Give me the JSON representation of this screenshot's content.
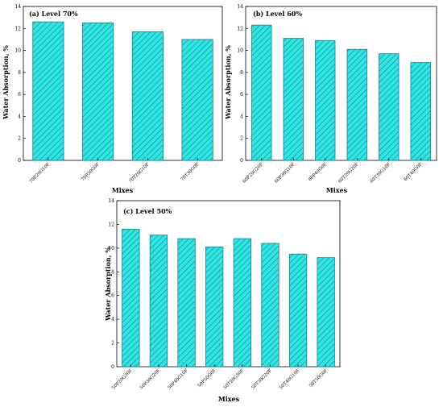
{
  "figure": {
    "bar_fill": "#2ee6e6",
    "bar_stroke": "#1a7f7f",
    "hatch_color": "#0f5f5f",
    "axis_color": "#000000"
  },
  "chart_data": [
    {
      "type": "bar",
      "panel_label": "(a) Level 70%",
      "title": "",
      "xlabel": "Mixes",
      "ylabel": "Water Absorption, %",
      "ylim": [
        0,
        14
      ],
      "yticks": [
        "0",
        "2",
        "4",
        "6",
        "8",
        "10",
        "12",
        "14"
      ],
      "categories": [
        "70P20G10F",
        "70P30G0F",
        "70T20G10F",
        "70T30G0F"
      ],
      "values": [
        12.6,
        12.5,
        11.7,
        11.0
      ],
      "grid": false,
      "legend": "none"
    },
    {
      "type": "bar",
      "panel_label": "(b) Level 60%",
      "title": "",
      "xlabel": "Mixes",
      "ylabel": "Water Absorption, %",
      "ylim": [
        0,
        14
      ],
      "yticks": [
        "0",
        "2",
        "4",
        "6",
        "8",
        "10",
        "12",
        "14"
      ],
      "categories": [
        "60P20G20F",
        "60P30G10F",
        "60P40G0F",
        "60T20G20F",
        "60T30G10F",
        "60T40G0F"
      ],
      "values": [
        12.3,
        11.1,
        10.9,
        10.1,
        9.7,
        8.9
      ],
      "grid": false,
      "legend": "none"
    },
    {
      "type": "bar",
      "panel_label": "(c) Level 50%",
      "title": "",
      "xlabel": "Mixes",
      "ylabel": "Water Absorption, %",
      "ylim": [
        0,
        14
      ],
      "yticks": [
        "0",
        "2",
        "4",
        "6",
        "8",
        "10",
        "12",
        "14"
      ],
      "categories": [
        "50P20G30F",
        "50P30G20F",
        "50P40G10F",
        "50P50G0F",
        "50T20G30F",
        "50T30G20F",
        "50T40G10F",
        "50T50G0F"
      ],
      "values": [
        11.6,
        11.1,
        10.8,
        10.1,
        10.8,
        10.4,
        9.5,
        9.2
      ],
      "grid": false,
      "legend": "none"
    }
  ]
}
